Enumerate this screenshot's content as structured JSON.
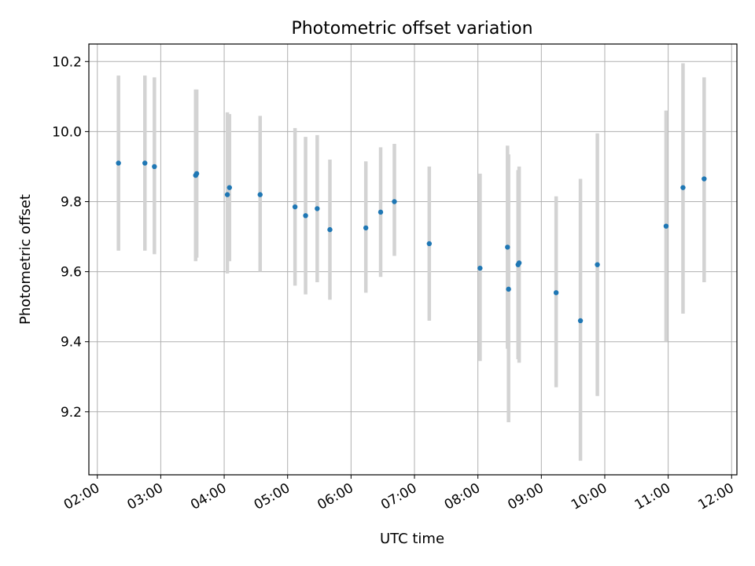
{
  "chart_data": {
    "type": "scatter",
    "title": "Photometric offset variation",
    "xlabel": "UTC time",
    "ylabel": "Photometric offset",
    "xlim": [
      "01:52",
      "12:05"
    ],
    "ylim": [
      9.02,
      10.25
    ],
    "grid": true,
    "x_ticks": [
      "02:00",
      "03:00",
      "04:00",
      "05:00",
      "06:00",
      "07:00",
      "08:00",
      "09:00",
      "10:00",
      "11:00",
      "12:00"
    ],
    "y_ticks": [
      9.2,
      9.4,
      9.6,
      9.8,
      10.0,
      10.2
    ],
    "colors": {
      "points": "#1f77b4",
      "errorbars": "#d3d3d3",
      "grid": "#b0b0b0"
    },
    "points": [
      {
        "time": "02:20",
        "y": 9.91,
        "err_low": 9.66,
        "err_high": 10.16
      },
      {
        "time": "02:45",
        "y": 9.91,
        "err_low": 9.66,
        "err_high": 10.16
      },
      {
        "time": "02:54",
        "y": 9.9,
        "err_low": 9.65,
        "err_high": 10.155
      },
      {
        "time": "03:33",
        "y": 9.875,
        "err_low": 9.63,
        "err_high": 10.12
      },
      {
        "time": "03:34",
        "y": 9.88,
        "err_low": 9.64,
        "err_high": 10.12
      },
      {
        "time": "04:03",
        "y": 9.82,
        "err_low": 9.595,
        "err_high": 10.055
      },
      {
        "time": "04:05",
        "y": 9.84,
        "err_low": 9.63,
        "err_high": 10.05
      },
      {
        "time": "04:34",
        "y": 9.82,
        "err_low": 9.6,
        "err_high": 10.045
      },
      {
        "time": "05:07",
        "y": 9.785,
        "err_low": 9.56,
        "err_high": 10.01
      },
      {
        "time": "05:17",
        "y": 9.76,
        "err_low": 9.535,
        "err_high": 9.985
      },
      {
        "time": "05:28",
        "y": 9.78,
        "err_low": 9.57,
        "err_high": 9.99
      },
      {
        "time": "05:40",
        "y": 9.72,
        "err_low": 9.52,
        "err_high": 9.92
      },
      {
        "time": "06:14",
        "y": 9.725,
        "err_low": 9.54,
        "err_high": 9.915
      },
      {
        "time": "06:28",
        "y": 9.77,
        "err_low": 9.585,
        "err_high": 9.955
      },
      {
        "time": "06:41",
        "y": 9.8,
        "err_low": 9.645,
        "err_high": 9.965
      },
      {
        "time": "07:14",
        "y": 9.68,
        "err_low": 9.46,
        "err_high": 9.9
      },
      {
        "time": "08:02",
        "y": 9.61,
        "err_low": 9.345,
        "err_high": 9.88
      },
      {
        "time": "08:28",
        "y": 9.67,
        "err_low": 9.38,
        "err_high": 9.96
      },
      {
        "time": "08:29",
        "y": 9.55,
        "err_low": 9.17,
        "err_high": 9.935
      },
      {
        "time": "08:38",
        "y": 9.62,
        "err_low": 9.35,
        "err_high": 9.89
      },
      {
        "time": "08:39",
        "y": 9.625,
        "err_low": 9.34,
        "err_high": 9.9
      },
      {
        "time": "09:14",
        "y": 9.54,
        "err_low": 9.27,
        "err_high": 9.815
      },
      {
        "time": "09:37",
        "y": 9.46,
        "err_low": 9.06,
        "err_high": 9.865
      },
      {
        "time": "09:53",
        "y": 9.62,
        "err_low": 9.245,
        "err_high": 9.995
      },
      {
        "time": "10:58",
        "y": 9.73,
        "err_low": 9.4,
        "err_high": 10.06
      },
      {
        "time": "11:14",
        "y": 9.84,
        "err_low": 9.48,
        "err_high": 10.195
      },
      {
        "time": "11:34",
        "y": 9.865,
        "err_low": 9.57,
        "err_high": 10.155
      }
    ]
  }
}
